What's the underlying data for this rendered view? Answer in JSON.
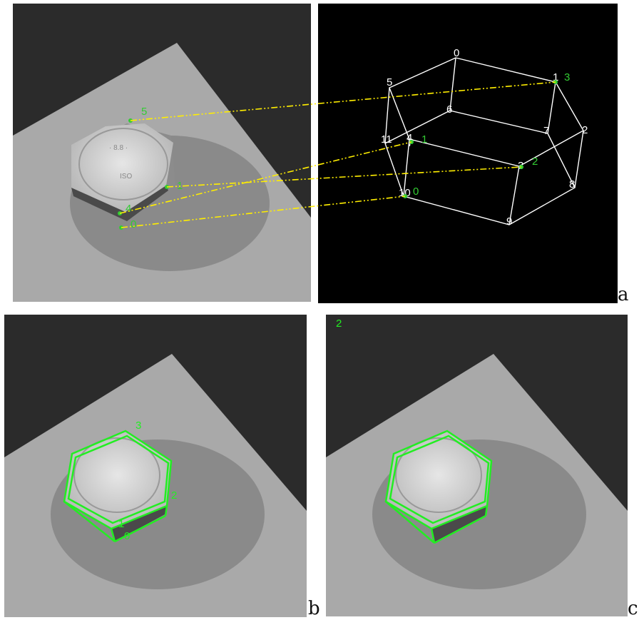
{
  "figure": {
    "panel_letters": [
      "a",
      "b",
      "c"
    ],
    "photo_point_labels": [
      "5",
      "1",
      "0",
      "4",
      "0"
    ],
    "model_vertex_labels": [
      "0",
      "1",
      "2",
      "3",
      "4",
      "5",
      "6",
      "7",
      "8",
      "9",
      "10",
      "11",
      "7"
    ],
    "model_match_labels": [
      "3",
      "1",
      "2",
      "0"
    ],
    "panel_b_labels": [
      "3",
      "2",
      "1",
      "0"
    ],
    "panel_c_label": "2",
    "colors": {
      "match_line": "#ffee00",
      "match_point": "#33cc33",
      "model_edge": "#ffffff",
      "overlay": "#22ee22",
      "model_bg": "#000000"
    }
  }
}
